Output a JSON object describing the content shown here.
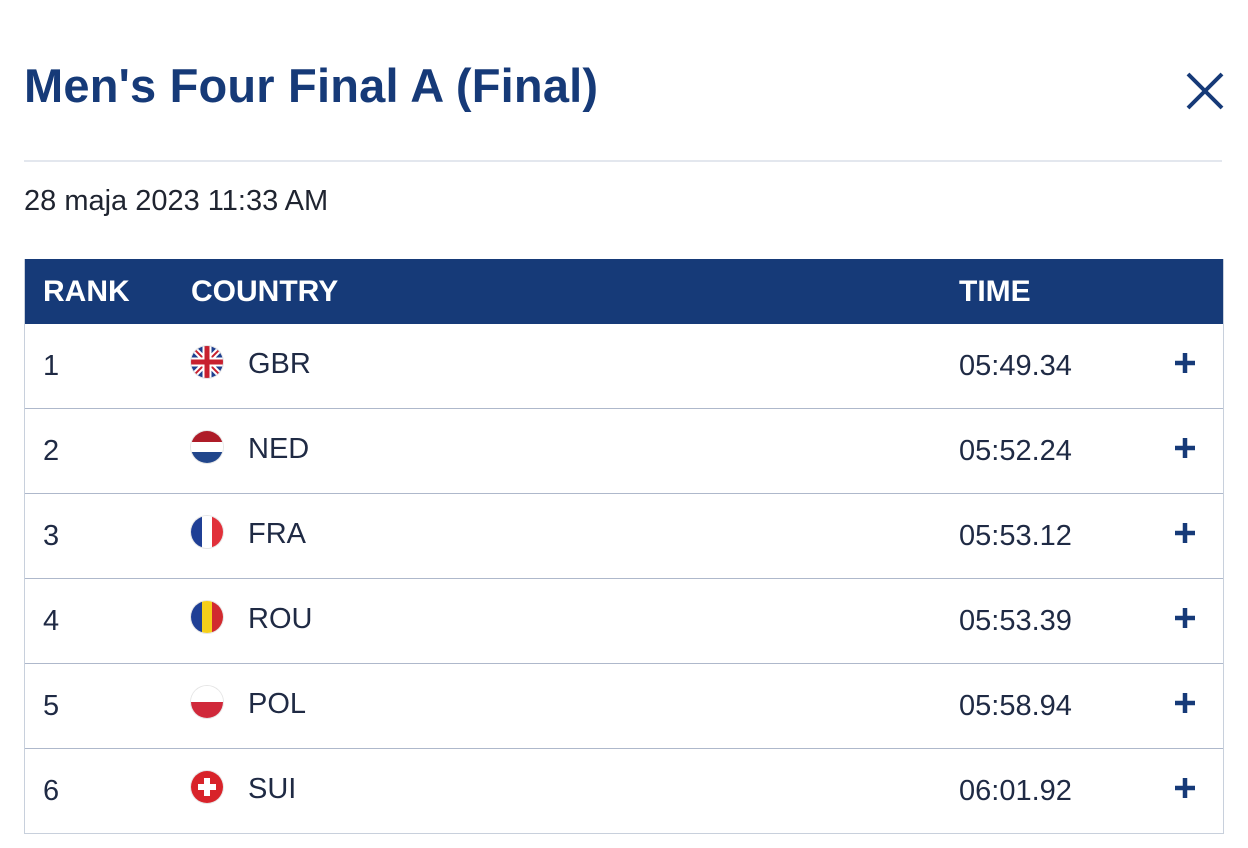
{
  "header": {
    "title": "Men's Four Final A (Final)",
    "date": "28 maja 2023 11:33 AM"
  },
  "table": {
    "columns": [
      "RANK",
      "COUNTRY",
      "TIME"
    ],
    "rows": [
      [
        1,
        "GBR",
        "05:49.34"
      ],
      [
        2,
        "NED",
        "05:52.24"
      ],
      [
        3,
        "FRA",
        "05:53.12"
      ],
      [
        4,
        "ROU",
        "05:53.39"
      ],
      [
        5,
        "POL",
        "05:58.94"
      ],
      [
        6,
        "SUI",
        "06:01.92"
      ]
    ]
  }
}
